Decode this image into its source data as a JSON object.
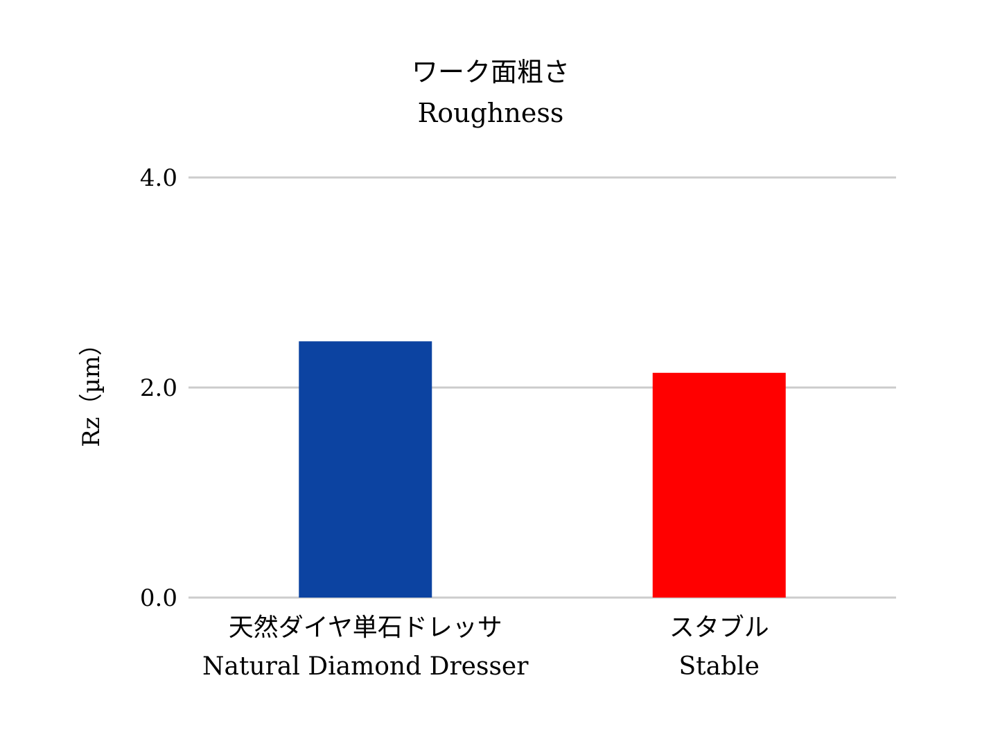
{
  "chart_data": {
    "type": "bar",
    "title_lines": [
      "ワーク面粗さ",
      "Roughness"
    ],
    "ylabel": "Rz（µm）",
    "xlabel": "",
    "ylim": [
      0,
      4
    ],
    "yticks": [
      "0.0",
      "2.0",
      "4.0"
    ],
    "ytick_values": [
      0,
      2,
      4
    ],
    "grid": true,
    "categories": [
      {
        "line1": "天然ダイヤ単石ドレッサ",
        "line2": "Natural Diamond Dresser"
      },
      {
        "line1": "スタブル",
        "line2": "Stable"
      }
    ],
    "values": [
      2.44,
      2.14
    ],
    "colors": [
      "#0c43a1",
      "#ff0000"
    ],
    "grid_color": "#cccccc"
  }
}
